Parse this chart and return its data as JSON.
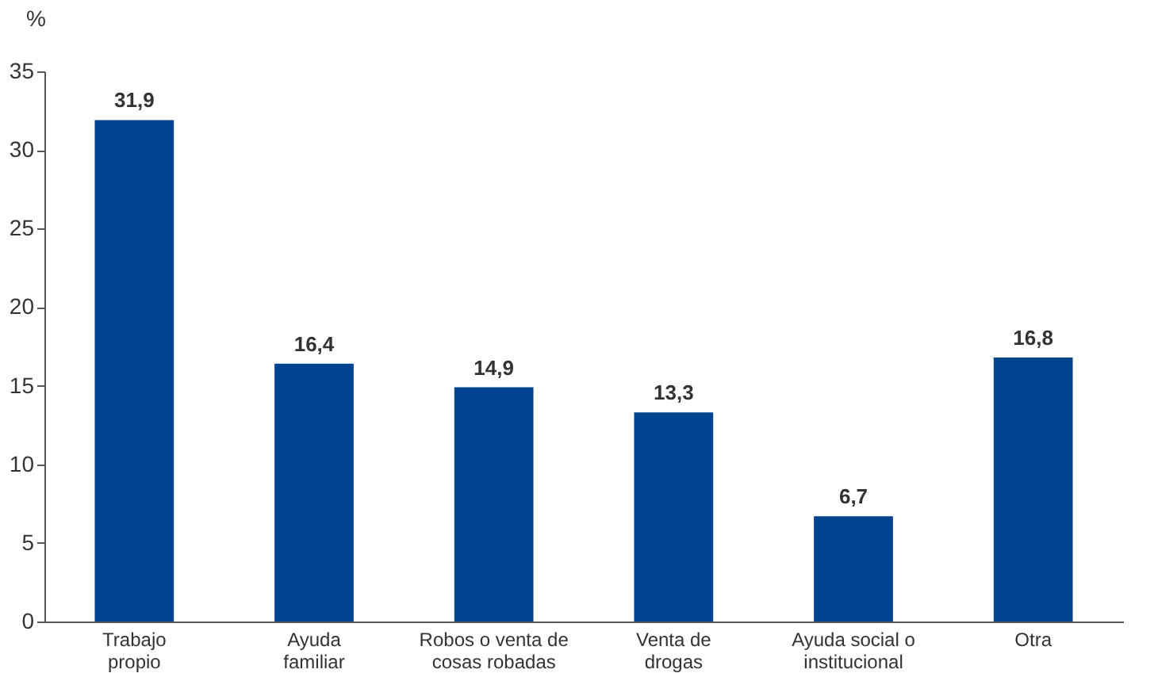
{
  "chart_data": {
    "type": "bar",
    "ylabel": "%",
    "categories": [
      "Trabajo\npropio",
      "Ayuda\nfamiliar",
      "Robos o venta de\ncosas robadas",
      "Venta de\ndrogas",
      "Ayuda social o\ninstitucional",
      "Otra"
    ],
    "values": [
      31.9,
      16.4,
      14.9,
      13.3,
      6.7,
      16.8
    ],
    "value_labels": [
      "31,9",
      "16,4",
      "14,9",
      "13,3",
      "6,7",
      "16,8"
    ],
    "color": "#00438e",
    "ylim": [
      0,
      35
    ],
    "yticks": [
      0,
      5,
      10,
      15,
      20,
      25,
      30,
      35
    ],
    "grid": false
  }
}
